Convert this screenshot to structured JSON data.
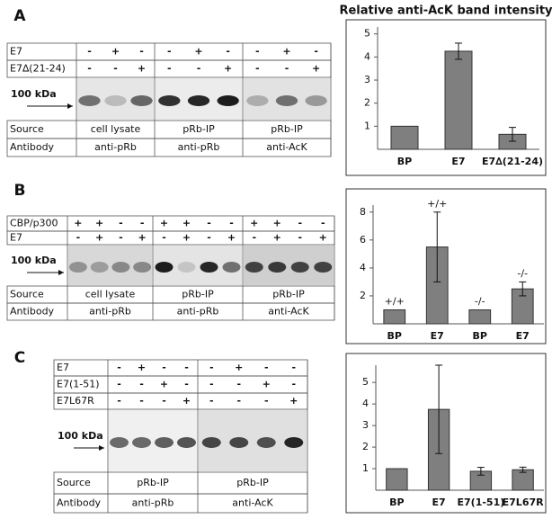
{
  "panels": [
    {
      "label": "A",
      "conditions": [
        {
          "name": "E7",
          "signs": [
            "-",
            "+",
            "-",
            "-",
            "+",
            "-",
            "-",
            "+",
            "-"
          ]
        },
        {
          "name": "E7∆(21-24)",
          "signs": [
            "-",
            "-",
            "+",
            "-",
            "-",
            "+",
            "-",
            "-",
            "+"
          ]
        }
      ],
      "marker": "100 kDa",
      "rows": [
        {
          "name": "Source",
          "groups": [
            "cell lysate",
            "pRb-IP",
            "pRb-IP"
          ]
        },
        {
          "name": "Antibody",
          "groups": [
            "anti-pRb",
            "anti-pRb",
            "anti-AcK"
          ]
        }
      ]
    },
    {
      "label": "B",
      "conditions": [
        {
          "name": "CBP/p300",
          "signs": [
            "+",
            "+",
            "-",
            "-",
            "+",
            "+",
            "-",
            "-",
            "+",
            "+",
            "-",
            "-"
          ]
        },
        {
          "name": "E7",
          "signs": [
            "-",
            "+",
            "-",
            "+",
            "-",
            "+",
            "-",
            "+",
            "-",
            "+",
            "-",
            "+"
          ]
        }
      ],
      "marker": "100 kDa",
      "rows": [
        {
          "name": "Source",
          "groups": [
            "cell lysate",
            "pRb-IP",
            "pRb-IP"
          ]
        },
        {
          "name": "Antibody",
          "groups": [
            "anti-pRb",
            "anti-pRb",
            "anti-AcK"
          ]
        }
      ]
    },
    {
      "label": "C",
      "conditions": [
        {
          "name": "E7",
          "signs": [
            "-",
            "+",
            "-",
            "-",
            "-",
            "+",
            "-",
            "-"
          ]
        },
        {
          "name": "E7(1-51)",
          "signs": [
            "-",
            "-",
            "+",
            "-",
            "-",
            "-",
            "+",
            "-"
          ]
        },
        {
          "name": "E7L67R",
          "signs": [
            "-",
            "-",
            "-",
            "+",
            "-",
            "-",
            "-",
            "+"
          ]
        }
      ],
      "marker": "100 kDa",
      "rows": [
        {
          "name": "Source",
          "groups": [
            "pRb-IP",
            "pRb-IP"
          ]
        },
        {
          "name": "Antibody",
          "groups": [
            "anti-pRb",
            "anti-AcK"
          ]
        }
      ]
    }
  ],
  "chart_data": [
    {
      "type": "bar",
      "title": "Relative anti-AcK band intensity",
      "categories": [
        "BP",
        "E7",
        "E7∆(21-24)"
      ],
      "values": [
        1,
        4.25,
        0.65
      ],
      "errors": [
        0,
        0.35,
        0.3
      ],
      "color": "#7f7f7f",
      "ylim": [
        0,
        5.3
      ],
      "yticks": [
        1,
        2,
        3,
        4,
        5
      ]
    },
    {
      "type": "bar",
      "categories": [
        "BP",
        "E7",
        "BP",
        "E7"
      ],
      "values": [
        1,
        5.5,
        1,
        2.5
      ],
      "errors": [
        0,
        2.5,
        0,
        0.5
      ],
      "bar_labels": [
        "+/+",
        "+/+",
        "-/-",
        "-/-"
      ],
      "color": "#7f7f7f",
      "ylim": [
        0,
        8.5
      ],
      "yticks": [
        2,
        4,
        6,
        8
      ]
    },
    {
      "type": "bar",
      "categories": [
        "BP",
        "E7",
        "E7(1-51)",
        "E7L67R"
      ],
      "values": [
        1,
        3.75,
        0.88,
        0.95
      ],
      "errors": [
        0,
        2.05,
        0.18,
        0.12
      ],
      "color": "#7f7f7f",
      "ylim": [
        0,
        5.8
      ],
      "yticks": [
        1,
        2,
        3,
        4,
        5
      ]
    }
  ]
}
